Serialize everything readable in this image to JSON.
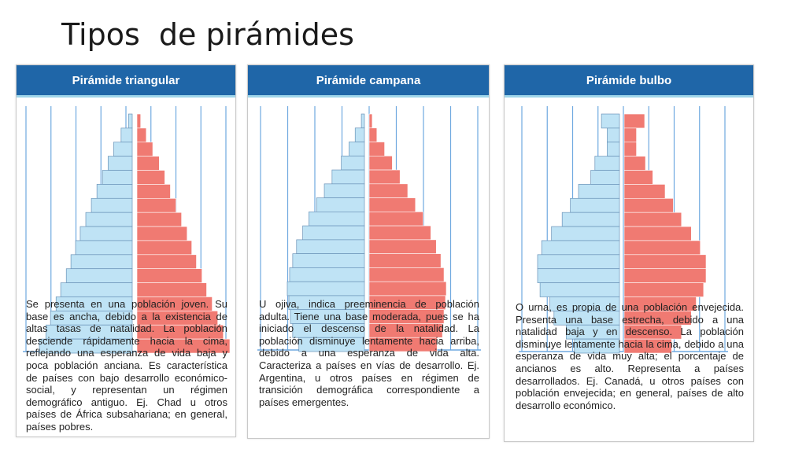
{
  "slide": {
    "title": "Tipos  de pirámides"
  },
  "colors": {
    "header_bg": "#1f66a8",
    "male_bar": "#bfe3f5",
    "female_bar": "#f07a72",
    "grid": "#6fa9e0"
  },
  "cards": [
    {
      "id": "triangular",
      "title": "Pirámide triangular",
      "description": "Se presenta en una población joven. Su base es ancha, debido a la existencia de altas tasas de natalidad. La población desciende rápidamente hacia la cima, reflejando una esperanza de vida baja y poca población anciana. Es característica de países con bajo desarrollo económico-social, y representan un régimen demográfico antiguo. Ej. Chad u otros países de África subsahariana; en general, países pobres.",
      "male": [
        0.04,
        0.12,
        0.2,
        0.26,
        0.32,
        0.38,
        0.44,
        0.5,
        0.56,
        0.61,
        0.66,
        0.71,
        0.77,
        0.82,
        0.88,
        0.93,
        1.0
      ],
      "female": [
        0.04,
        0.1,
        0.17,
        0.24,
        0.3,
        0.36,
        0.42,
        0.48,
        0.54,
        0.59,
        0.64,
        0.7,
        0.75,
        0.81,
        0.87,
        0.93,
        1.0
      ]
    },
    {
      "id": "campana",
      "title": "Pirámide campana",
      "description": "U ojiva, indica preeminencia de población adulta. Tiene una base moderada, pues se ha iniciado el descenso de la natalidad. La población disminuye lentamente hacia arriba, debido a una esperanza de vida alta. Caracteriza a países en vías de desarrollo. Ej. Argentina, u otros países en régimen de transición demográfica correspondiente a países emergentes.",
      "male": [
        0.04,
        0.12,
        0.2,
        0.3,
        0.42,
        0.52,
        0.62,
        0.72,
        0.8,
        0.88,
        0.93,
        0.97,
        1.0,
        0.98,
        0.96,
        0.93,
        0.85
      ],
      "female": [
        0.04,
        0.1,
        0.2,
        0.3,
        0.4,
        0.5,
        0.6,
        0.7,
        0.8,
        0.87,
        0.93,
        0.97,
        1.0,
        0.99,
        0.97,
        0.95,
        0.88
      ]
    },
    {
      "id": "bulbo",
      "title": "Pirámide bulbo",
      "description": "O urna, es propia de una población envejecida. Presenta una base estrecha, debido a una natalidad baja y en descenso. La población disminuye lentamente hacia la cima, debido a una esperanza de vida muy alta; el porcentaje de ancianos es alto. Representa a países desarrollados. Ej. Canadá, u otros países con población envejecida; en general, países de alto desarrollo económico.",
      "male": [
        0.22,
        0.15,
        0.15,
        0.3,
        0.35,
        0.5,
        0.6,
        0.7,
        0.83,
        0.95,
        1.0,
        1.0,
        0.97,
        0.85,
        0.8,
        0.65,
        0.55
      ],
      "female": [
        0.25,
        0.15,
        0.15,
        0.26,
        0.35,
        0.5,
        0.6,
        0.7,
        0.82,
        0.93,
        1.0,
        1.0,
        0.97,
        0.88,
        0.82,
        0.7,
        0.58
      ]
    }
  ]
}
